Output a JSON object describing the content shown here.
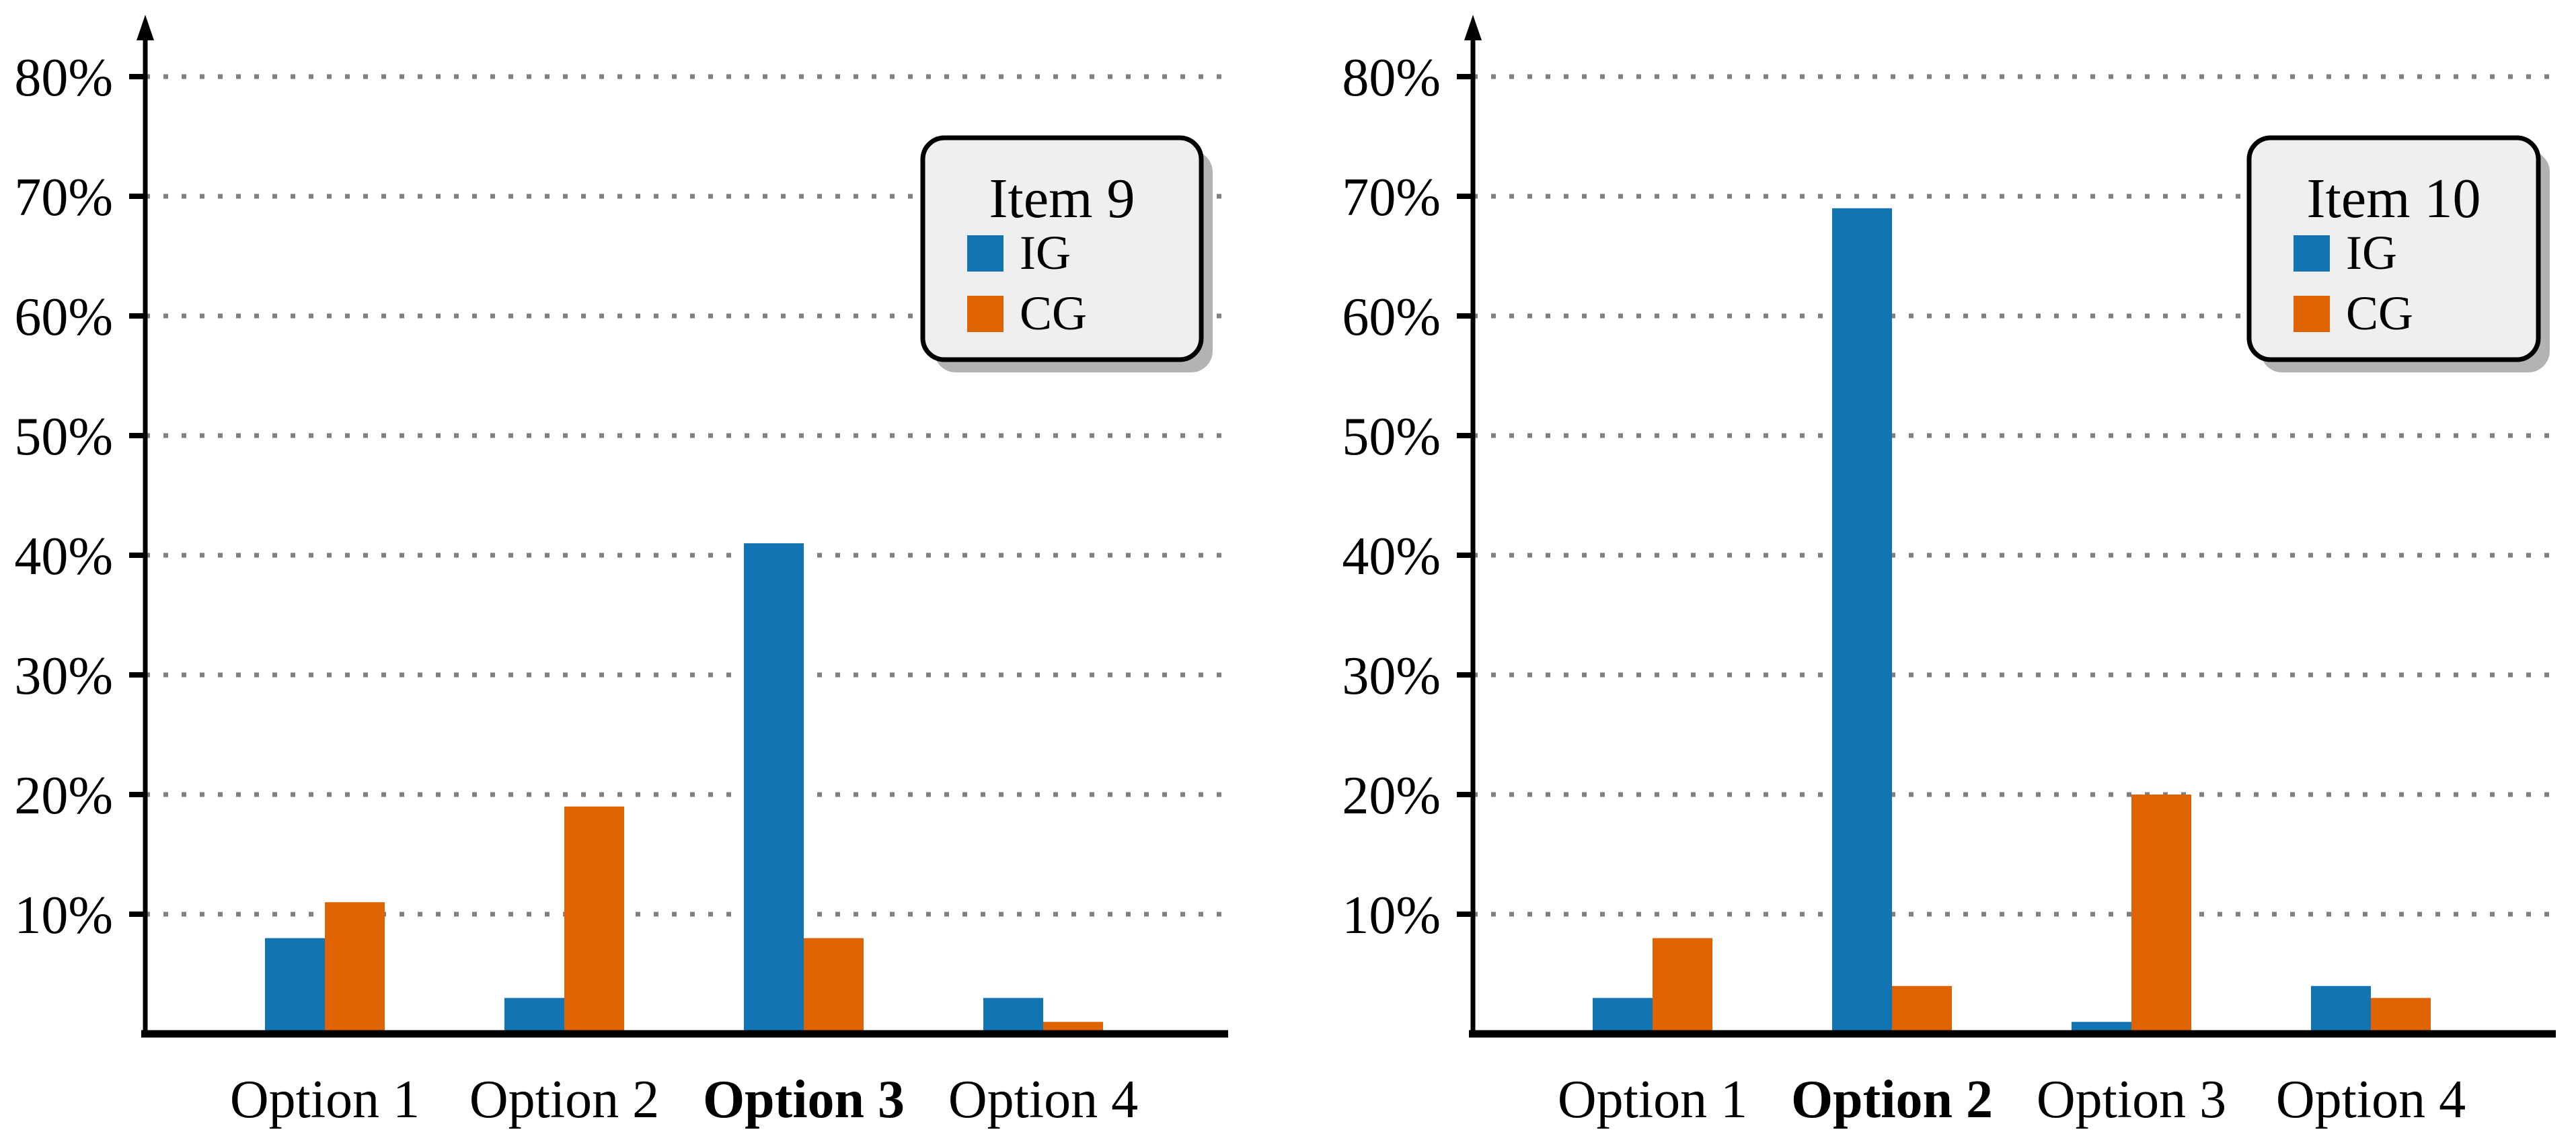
{
  "figure": {
    "description": "Two grouped bar charts comparing IG and CG response percentages per option",
    "colors": {
      "ig": "#1274b3",
      "cg": "#df6300",
      "grid": "#808080",
      "axis": "#000000",
      "label": "#000000",
      "legend_fill": "#efefef",
      "legend_border": "#000000",
      "legend_shadow": "#b3b3b3",
      "background": "#ffffff"
    }
  },
  "chart_data": [
    {
      "type": "bar",
      "title": "Item 9",
      "categories": [
        "Option 1",
        "Option 2",
        "Option 3",
        "Option 4"
      ],
      "bold_category": "Option 3",
      "series": [
        {
          "name": "IG",
          "color_key": "ig",
          "values": [
            8,
            3,
            41,
            3
          ]
        },
        {
          "name": "CG",
          "color_key": "cg",
          "values": [
            11,
            19,
            8,
            1
          ]
        }
      ],
      "xlabel": "",
      "ylabel": "",
      "ylim": [
        0,
        85
      ],
      "yticks": [
        10,
        20,
        30,
        40,
        50,
        60,
        70,
        80
      ],
      "ytick_labels": [
        "10%",
        "20%",
        "30%",
        "40%",
        "50%",
        "60%",
        "70%",
        "80%"
      ],
      "grid": "horizontal-dotted",
      "legend": {
        "title": "Item 9",
        "entries": [
          {
            "label": "IG",
            "color_key": "ig"
          },
          {
            "label": "CG",
            "color_key": "cg"
          }
        ],
        "position": "top-right"
      }
    },
    {
      "type": "bar",
      "title": "Item 10",
      "categories": [
        "Option 1",
        "Option 2",
        "Option 3",
        "Option 4"
      ],
      "bold_category": "Option 2",
      "series": [
        {
          "name": "IG",
          "color_key": "ig",
          "values": [
            3,
            69,
            1,
            4
          ]
        },
        {
          "name": "CG",
          "color_key": "cg",
          "values": [
            8,
            4,
            20,
            3
          ]
        }
      ],
      "xlabel": "",
      "ylabel": "",
      "ylim": [
        0,
        85
      ],
      "yticks": [
        10,
        20,
        30,
        40,
        50,
        60,
        70,
        80
      ],
      "ytick_labels": [
        "10%",
        "20%",
        "30%",
        "40%",
        "50%",
        "60%",
        "70%",
        "80%"
      ],
      "grid": "horizontal-dotted",
      "legend": {
        "title": "Item 10",
        "entries": [
          {
            "label": "IG",
            "color_key": "ig"
          },
          {
            "label": "CG",
            "color_key": "cg"
          }
        ],
        "position": "top-right"
      }
    }
  ]
}
